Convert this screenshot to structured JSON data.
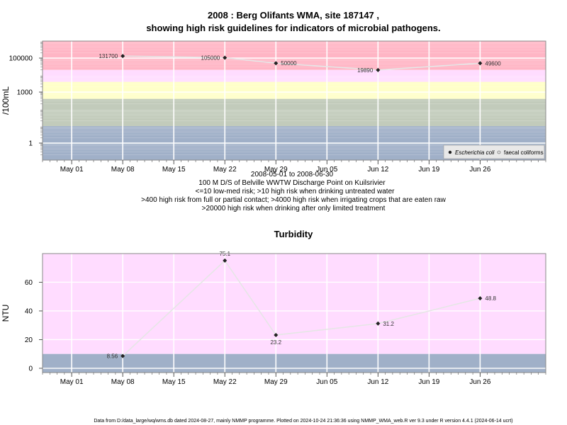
{
  "colors": {
    "band_red": "#ffb5c5",
    "band_pink": "#ffdcff",
    "band_yellow": "#ffffc8",
    "band_grey": "#c2cbbb",
    "band_blue": "#a0b0c8",
    "line": "#e6e6e6",
    "grid": "#ffffff",
    "frame": "#8a8a8a",
    "marker": "#222222"
  },
  "chart_data": [
    {
      "type": "line",
      "title": "2008 : Berg Olifants WMA, site 187147 ,",
      "subtitle": "showing high risk guidelines for indicators of microbial pathogens.",
      "ylabel": "/100mL",
      "y_scale": "log",
      "ylim": [
        0.1,
        1000000
      ],
      "xlim": [
        "2008-04-27",
        "2008-07-05"
      ],
      "y_ticks": [
        1,
        1000,
        100000
      ],
      "y_tick_labels": [
        "1",
        "1000",
        "100000"
      ],
      "x_ticks": [
        "2008-05-01",
        "2008-05-08",
        "2008-05-15",
        "2008-05-22",
        "2008-05-29",
        "2008-06-05",
        "2008-06-12",
        "2008-06-19",
        "2008-06-26"
      ],
      "x_tick_labels": [
        "May 01",
        "May 08",
        "May 15",
        "May 22",
        "May 29",
        "Jun 05",
        "Jun 12",
        "Jun 19",
        "Jun 26"
      ],
      "grid": true,
      "legend_position": "bottom-right",
      "legend": [
        "Escherichia coli",
        "faecal coliforms"
      ],
      "bands": [
        {
          "from": 20000,
          "to": 1000000,
          "color": "#ffb5c5"
        },
        {
          "from": 4000,
          "to": 20000,
          "color": "#ffdcff"
        },
        {
          "from": 400,
          "to": 4000,
          "color": "#ffffc8"
        },
        {
          "from": 10,
          "to": 400,
          "color": "#c2cbbb"
        },
        {
          "from": 0.1,
          "to": 10,
          "color": "#a0b0c8"
        }
      ],
      "series": [
        {
          "name": "Escherichia coli",
          "x": [
            "2008-05-08",
            "2008-05-22",
            "2008-05-29",
            "2008-06-12",
            "2008-06-26"
          ],
          "y": [
            131700,
            105000,
            50000,
            19890,
            49600
          ],
          "labels": [
            "131700",
            "105000",
            "50000",
            "19890",
            "49600"
          ]
        }
      ],
      "notes": [
        "2008-05-01 to 2008-06-30",
        "100 M D/S of Belville WWTW Discharge Point on Kuilsrivier",
        "<=10 low-med risk; >10 high risk when drinking untreated water",
        ">400 high risk from full or partial contact; >4000 high risk when irrigating crops that are eaten raw",
        ">20000 high risk when drinking after only limited treatment"
      ]
    },
    {
      "type": "line",
      "title": "Turbidity",
      "ylabel": "NTU",
      "ylim": [
        -3,
        80
      ],
      "xlim": [
        "2008-04-27",
        "2008-07-05"
      ],
      "y_ticks": [
        0,
        20,
        40,
        60
      ],
      "y_tick_labels": [
        "0",
        "20",
        "40",
        "60"
      ],
      "x_ticks": [
        "2008-05-01",
        "2008-05-08",
        "2008-05-15",
        "2008-05-22",
        "2008-05-29",
        "2008-06-05",
        "2008-06-12",
        "2008-06-19",
        "2008-06-26"
      ],
      "x_tick_labels": [
        "May 01",
        "May 08",
        "May 15",
        "May 22",
        "May 29",
        "Jun 05",
        "Jun 12",
        "Jun 19",
        "Jun 26"
      ],
      "grid": true,
      "bands": [
        {
          "from": 10,
          "to": 80,
          "color": "#ffdcff"
        },
        {
          "from": -3,
          "to": 10,
          "color": "#a0b0c8"
        }
      ],
      "series": [
        {
          "x": [
            "2008-05-08",
            "2008-05-22",
            "2008-05-29",
            "2008-06-12",
            "2008-06-26"
          ],
          "y": [
            8.56,
            75.1,
            23.2,
            31.2,
            48.8
          ],
          "labels": [
            "8.56",
            "75.1",
            "23.2",
            "31.2",
            "48.8"
          ]
        }
      ]
    }
  ],
  "footer": "Data from D:/data_large/wq/wms.db dated 2024-08-27, mainly NMMP programme. Plotted on 2024-10-24 21:36:36 using NMMP_WMA_web.R ver 9.3 under R version 4.4.1 (2024-06-14 ucrt)"
}
